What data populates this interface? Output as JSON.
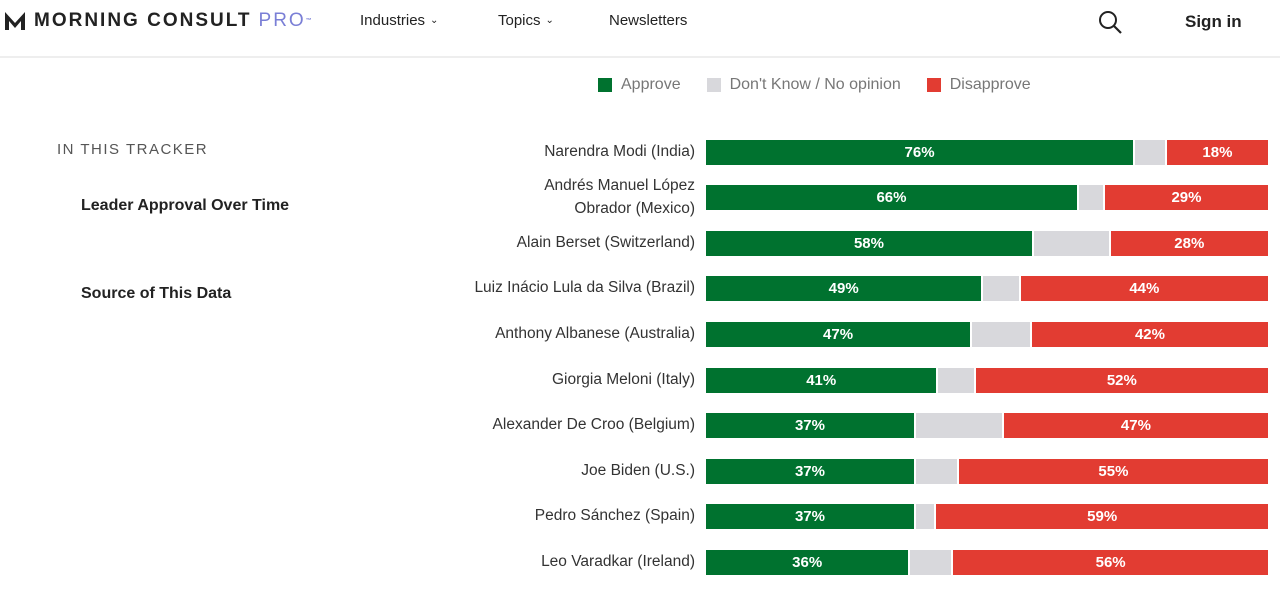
{
  "header": {
    "logo": {
      "brand": "MORNING CONSULT",
      "suffix": "PRO",
      "tm": "™"
    },
    "nav": [
      {
        "label": "Industries"
      },
      {
        "label": "Topics"
      },
      {
        "label": "Newsletters"
      }
    ],
    "sign_in": "Sign in"
  },
  "sidebar": {
    "title": "IN THIS TRACKER",
    "links": [
      {
        "label": "Leader Approval Over Time"
      },
      {
        "label": "Source of This Data"
      }
    ]
  },
  "colors": {
    "approve": "#00722f",
    "dont_know": "#d8d8dc",
    "disapprove": "#e23c32"
  },
  "chart_data": {
    "type": "bar",
    "orientation": "horizontal-stacked",
    "legend": [
      "Approve",
      "Don't Know / No opinion",
      "Disapprove"
    ],
    "legend_position": "top",
    "categories": [
      "Narendra Modi (India)",
      "Andrés Manuel López Obrador (Mexico)",
      "Alain Berset (Switzerland)",
      "Luiz Inácio Lula da Silva (Brazil)",
      "Anthony Albanese (Australia)",
      "Giorgia Meloni (Italy)",
      "Alexander De Croo (Belgium)",
      "Joe Biden (U.S.)",
      "Pedro Sánchez (Spain)",
      "Leo Varadkar (Ireland)"
    ],
    "series": [
      {
        "name": "Approve",
        "values": [
          76,
          66,
          58,
          49,
          47,
          41,
          37,
          37,
          37,
          36
        ]
      },
      {
        "name": "Don't Know / No opinion",
        "values": [
          6,
          5,
          14,
          7,
          11,
          7,
          16,
          8,
          4,
          8
        ]
      },
      {
        "name": "Disapprove",
        "values": [
          18,
          29,
          28,
          44,
          42,
          52,
          47,
          55,
          59,
          56
        ]
      }
    ],
    "xlim": [
      0,
      100
    ],
    "unit": "%"
  }
}
